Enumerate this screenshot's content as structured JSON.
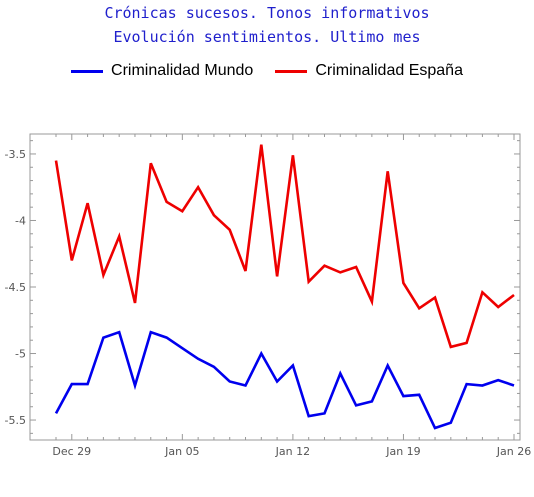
{
  "title": "Crónicas sucesos. Tonos informativos",
  "subtitle": "Evolución sentimientos. Ultimo mes",
  "chart_data": {
    "type": "line",
    "title": "Crónicas sucesos. Tonos informativos",
    "subtitle": "Evolución sentimientos. Ultimo mes",
    "xlabel": "",
    "ylabel": "",
    "x": [
      "Dec 28",
      "Dec 29",
      "Dec 30",
      "Dec 31",
      "Jan 01",
      "Jan 02",
      "Jan 03",
      "Jan 04",
      "Jan 05",
      "Jan 06",
      "Jan 07",
      "Jan 08",
      "Jan 09",
      "Jan 10",
      "Jan 11",
      "Jan 12",
      "Jan 13",
      "Jan 14",
      "Jan 15",
      "Jan 16",
      "Jan 17",
      "Jan 18",
      "Jan 19",
      "Jan 20",
      "Jan 21",
      "Jan 22",
      "Jan 23",
      "Jan 24",
      "Jan 25",
      "Jan 26"
    ],
    "x_ticks": [
      "Dec 29",
      "Jan 05",
      "Jan 12",
      "Jan 19",
      "Jan 26"
    ],
    "y_ticks": [
      -3.5,
      -4.0,
      -4.5,
      -5.0,
      -5.5
    ],
    "ylim": [
      -5.65,
      -3.35
    ],
    "grid": false,
    "legend": "top",
    "series": [
      {
        "name": "Criminalidad Mundo",
        "color": "#0000ee",
        "values": [
          -5.45,
          -5.23,
          -5.23,
          -4.88,
          -4.84,
          -5.24,
          -4.84,
          -4.88,
          -4.96,
          -5.04,
          -5.1,
          -5.21,
          -5.24,
          -5.0,
          -5.21,
          -5.09,
          -5.47,
          -5.45,
          -5.15,
          -5.39,
          -5.36,
          -5.09,
          -5.32,
          -5.31,
          -5.56,
          -5.52,
          -5.23,
          -5.24,
          -5.2,
          -5.24
        ]
      },
      {
        "name": "Criminalidad España",
        "color": "#ee0000",
        "values": [
          -3.55,
          -4.3,
          -3.87,
          -4.41,
          -4.12,
          -4.62,
          -3.57,
          -3.86,
          -3.93,
          -3.75,
          -3.96,
          -4.07,
          -4.38,
          -3.43,
          -4.42,
          -3.51,
          -4.46,
          -4.34,
          -4.39,
          -4.35,
          -4.61,
          -3.63,
          -4.47,
          -4.66,
          -4.58,
          -4.95,
          -4.92,
          -4.54,
          -4.65,
          -4.56
        ]
      }
    ]
  }
}
